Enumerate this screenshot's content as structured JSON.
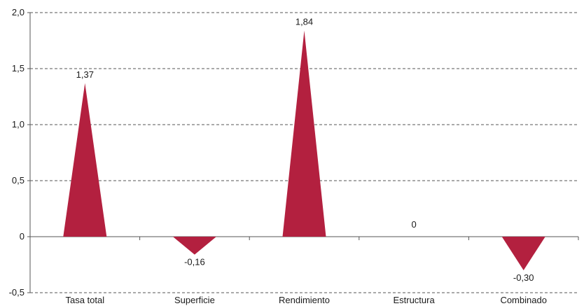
{
  "chart_data": {
    "type": "bar",
    "style": "triangle",
    "categories": [
      "Tasa total",
      "Superficie",
      "Rendimiento",
      "Estructura",
      "Combinado"
    ],
    "values": [
      1.37,
      -0.16,
      1.84,
      0,
      -0.3
    ],
    "value_labels": [
      "1,37",
      "-0,16",
      "1,84",
      "0",
      "-0,30"
    ],
    "ylim": [
      -0.5,
      2.0
    ],
    "yticks": [
      -0.5,
      0,
      0.5,
      1.0,
      1.5,
      2.0
    ],
    "ytick_labels": [
      "-0,5",
      "0",
      "0,5",
      "1,0",
      "1,5",
      "2,0"
    ],
    "grid": true,
    "grid_style": "dashed",
    "colors": {
      "bar": "#b3203f",
      "grid": "#555555",
      "axis": "#555555",
      "text": "#1a1a1a"
    }
  }
}
